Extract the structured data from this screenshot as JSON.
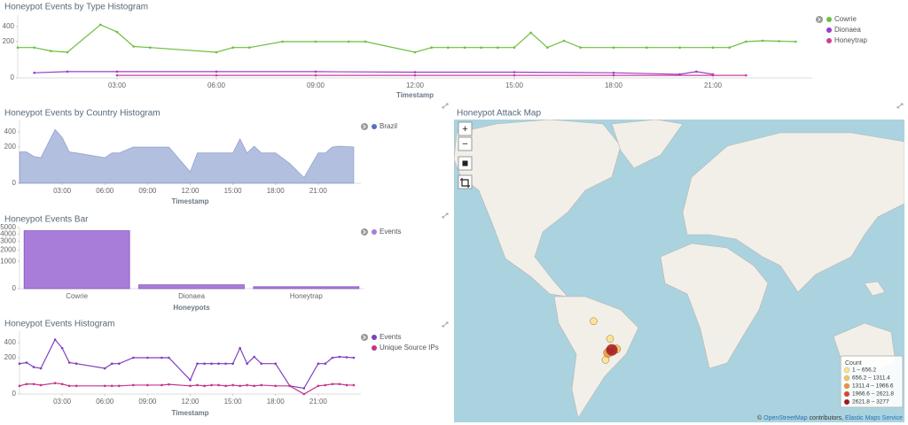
{
  "chart_data": [
    {
      "type": "line",
      "title": "Honeypot Events by Type Histogram",
      "x_label": "Timestamp",
      "xlim": [
        0,
        24
      ],
      "xticks": [
        {
          "value": 3,
          "label": "03:00"
        },
        {
          "value": 6,
          "label": "06:00"
        },
        {
          "value": 9,
          "label": "09:00"
        },
        {
          "value": 12,
          "label": "12:00"
        },
        {
          "value": 15,
          "label": "15:00"
        },
        {
          "value": 18,
          "label": "18:00"
        },
        {
          "value": 21,
          "label": "21:00"
        }
      ],
      "ylim": [
        0,
        600
      ],
      "yticks": [
        0,
        200,
        400
      ],
      "y_scale": "sqrt",
      "legend": "right",
      "series": [
        {
          "name": "Cowrie",
          "color": "#6cbf3f",
          "x": [
            0,
            0.5,
            1,
            1.5,
            2.5,
            3,
            3.5,
            4,
            6,
            6.5,
            7,
            8,
            9,
            10,
            10.5,
            12,
            12.5,
            13,
            13.5,
            14,
            14.5,
            15,
            15.5,
            16,
            16.5,
            17,
            18,
            19,
            20,
            21,
            21.5,
            22,
            22.5,
            23,
            23.5
          ],
          "values": [
            140,
            140,
            110,
            100,
            430,
            320,
            150,
            140,
            100,
            140,
            140,
            200,
            200,
            200,
            200,
            100,
            140,
            140,
            140,
            140,
            140,
            140,
            310,
            140,
            210,
            140,
            140,
            140,
            140,
            140,
            140,
            200,
            210,
            205,
            200
          ]
        },
        {
          "name": "Dionaea",
          "color": "#9b3dc4",
          "x": [
            0.5,
            1.5,
            3,
            6,
            9,
            12,
            15,
            18,
            20,
            20.5,
            21
          ],
          "values": [
            4,
            6,
            6,
            6,
            6,
            5,
            5,
            4,
            2,
            6,
            2
          ]
        },
        {
          "name": "Honeytrap",
          "color": "#c9409c",
          "x": [
            3,
            6,
            9,
            12,
            15,
            18,
            21,
            22
          ],
          "values": [
            1,
            1,
            1,
            1,
            1,
            1,
            1,
            1
          ]
        }
      ]
    },
    {
      "type": "area",
      "title": "Honeypot Events by Country Histogram",
      "x_label": "Timestamp",
      "xlim": [
        0,
        24
      ],
      "xticks": [
        {
          "value": 3,
          "label": "03:00"
        },
        {
          "value": 6,
          "label": "06:00"
        },
        {
          "value": 9,
          "label": "09:00"
        },
        {
          "value": 12,
          "label": "12:00"
        },
        {
          "value": 15,
          "label": "15:00"
        },
        {
          "value": 18,
          "label": "18:00"
        },
        {
          "value": 21,
          "label": "21:00"
        }
      ],
      "ylim": [
        0,
        600
      ],
      "yticks": [
        0,
        200,
        400
      ],
      "y_scale": "sqrt",
      "legend": "right",
      "series": [
        {
          "name": "Brazil",
          "color": "#5672b9",
          "x": [
            0,
            0.5,
            1,
            1.5,
            2.5,
            3,
            3.5,
            4,
            6,
            6.5,
            7,
            8,
            9,
            10,
            10.5,
            12,
            12.5,
            13,
            13.5,
            14,
            14.5,
            15,
            15.5,
            16,
            16.5,
            17,
            18,
            19,
            20,
            21,
            21.5,
            22,
            22.5,
            23,
            23.5
          ],
          "values": [
            150,
            150,
            110,
            100,
            440,
            320,
            150,
            140,
            100,
            140,
            140,
            200,
            200,
            200,
            200,
            20,
            140,
            140,
            140,
            140,
            140,
            140,
            300,
            140,
            210,
            140,
            140,
            60,
            5,
            140,
            140,
            200,
            210,
            205,
            200
          ]
        }
      ]
    },
    {
      "type": "bar",
      "title": "Honeypot Events Bar",
      "x_label": "Honeypots",
      "categories": [
        "Cowrie",
        "Dionaea",
        "Honeytrap"
      ],
      "ylim": [
        0,
        5000
      ],
      "yticks": [
        0,
        1000,
        2000,
        3000,
        4000,
        5000
      ],
      "y_scale": "sqrt",
      "legend": "right",
      "series": [
        {
          "name": "Events",
          "color": "#a77dd9",
          "values": [
            4500,
            20,
            5
          ]
        }
      ]
    },
    {
      "type": "line",
      "title": "Honeypot Events Histogram",
      "x_label": "Timestamp",
      "xlim": [
        0,
        24
      ],
      "xticks": [
        {
          "value": 3,
          "label": "03:00"
        },
        {
          "value": 6,
          "label": "06:00"
        },
        {
          "value": 9,
          "label": "09:00"
        },
        {
          "value": 12,
          "label": "12:00"
        },
        {
          "value": 15,
          "label": "15:00"
        },
        {
          "value": 18,
          "label": "18:00"
        },
        {
          "value": 21,
          "label": "21:00"
        }
      ],
      "ylim": [
        0,
        600
      ],
      "yticks": [
        0,
        200,
        400
      ],
      "y_scale": "sqrt",
      "legend": "right",
      "series": [
        {
          "name": "Events",
          "color": "#7f3fc1",
          "x": [
            0,
            0.5,
            1,
            1.5,
            2.5,
            3,
            3.5,
            4,
            6,
            6.5,
            7,
            8,
            9,
            10,
            10.5,
            12,
            12.5,
            13,
            13.5,
            14,
            14.5,
            15,
            15.5,
            16,
            16.5,
            17,
            18,
            19,
            20,
            21,
            21.5,
            22,
            22.5,
            23,
            23.5
          ],
          "values": [
            140,
            150,
            110,
            100,
            450,
            320,
            150,
            140,
            100,
            140,
            140,
            200,
            200,
            200,
            200,
            30,
            140,
            140,
            140,
            140,
            140,
            140,
            320,
            140,
            210,
            140,
            140,
            10,
            5,
            140,
            140,
            200,
            210,
            205,
            200
          ]
        },
        {
          "name": "Unique Source IPs",
          "color": "#c4338b",
          "x": [
            0,
            0.5,
            1,
            1.5,
            2.5,
            3,
            3.5,
            4,
            6,
            6.5,
            7,
            8,
            9,
            10,
            10.5,
            12,
            12.5,
            13,
            13.5,
            14,
            14.5,
            15,
            15.5,
            16,
            16.5,
            17,
            18,
            19,
            20,
            21,
            21.5,
            22,
            22.5,
            23,
            23.5
          ],
          "values": [
            10,
            15,
            15,
            12,
            18,
            15,
            10,
            10,
            10,
            10,
            10,
            12,
            12,
            12,
            14,
            10,
            12,
            10,
            12,
            12,
            10,
            12,
            10,
            12,
            10,
            12,
            10,
            10,
            0,
            10,
            12,
            15,
            15,
            12,
            12
          ]
        }
      ]
    }
  ],
  "map": {
    "title": "Honeypot Attack Map",
    "controls": [
      "+",
      "−"
    ],
    "legend_title": "Count",
    "buckets": [
      {
        "min": 1,
        "max": 656.2,
        "label": "1 – 656.2",
        "color": "#fde38c"
      },
      {
        "min": 656.2,
        "max": 1311.4,
        "label": "656.2 – 1311.4",
        "color": "#f9c25a"
      },
      {
        "min": 1311.4,
        "max": 1966.6,
        "label": "1311.4 – 1966.6",
        "color": "#f0903d"
      },
      {
        "min": 1966.6,
        "max": 2621.8,
        "label": "1966.6 – 2621.8",
        "color": "#de4328"
      },
      {
        "min": 2621.8,
        "max": 3277,
        "label": "2621.8 – 3277",
        "color": "#a3141b"
      }
    ],
    "points": [
      {
        "lat": -3.1,
        "lon": -60.0,
        "count": 400
      },
      {
        "lat": -15.8,
        "lon": -47.9,
        "count": 500
      },
      {
        "lat": -30.0,
        "lon": -51.2,
        "count": 600
      },
      {
        "lat": -22.9,
        "lon": -43.2,
        "count": 900
      },
      {
        "lat": -25.4,
        "lon": -49.3,
        "count": 1500
      },
      {
        "lat": -23.5,
        "lon": -46.6,
        "count": 3277
      }
    ],
    "attribution": {
      "prefix": "©",
      "osm": "OpenStreetMap",
      "middle": "contributors,",
      "ems": "Elastic Maps Service"
    }
  }
}
